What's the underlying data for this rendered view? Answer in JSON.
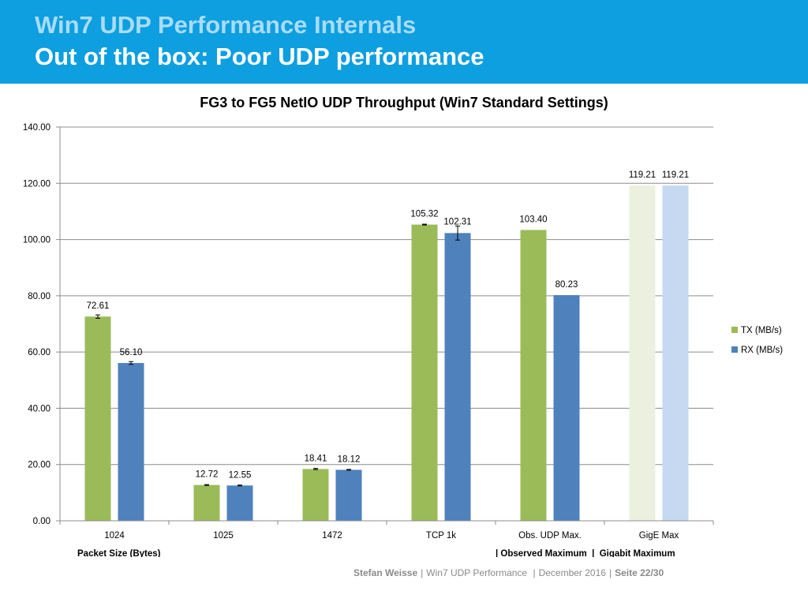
{
  "slide": {
    "title": "Win7 UDP Performance Internals",
    "subtitle": "Out of the box: Poor UDP performance"
  },
  "footer": {
    "author": "Stefan Weisse",
    "topic": "Win7 UDP Performance",
    "date": "December 2016",
    "page": "Seite 22/30"
  },
  "colors": {
    "header_bg": "#0d9fe0",
    "tx": "#9bbb59",
    "rx": "#4f81bd",
    "tx_light": "#ebf1de",
    "rx_light": "#c6d9f1"
  },
  "chart_data": {
    "type": "bar",
    "title": "FG3 to FG5 NetIO UDP Throughput (Win7 Standard Settings)",
    "xlabel": "Packet Size (Bytes)",
    "xnote": "| Observed Maximum  |  Gigabit Maximum",
    "ylabel": "",
    "ylim": [
      0,
      140
    ],
    "yticks": [
      "0.00",
      "20.00",
      "40.00",
      "60.00",
      "80.00",
      "100.00",
      "120.00",
      "140.00"
    ],
    "categories": [
      "1024",
      "1025",
      "1472",
      "TCP 1k",
      "Obs. UDP Max.",
      "GigE Max"
    ],
    "series": [
      {
        "name": "TX (MB/s)",
        "values": [
          72.61,
          12.72,
          18.41,
          105.32,
          103.4,
          119.21
        ],
        "labels": [
          "72.61",
          "12.72",
          "18.41",
          "105.32",
          "103.40",
          "119.21"
        ],
        "errors": [
          0.6,
          0.15,
          0.2,
          0.15,
          null,
          null
        ]
      },
      {
        "name": "RX (MB/s)",
        "values": [
          56.1,
          12.55,
          18.12,
          102.31,
          80.23,
          119.21
        ],
        "labels": [
          "56.10",
          "12.55",
          "18.12",
          "102.31",
          "80.23",
          "119.21"
        ],
        "errors": [
          0.5,
          0.15,
          0.15,
          2.5,
          null,
          null
        ]
      }
    ],
    "grid": true,
    "legend": "right"
  }
}
